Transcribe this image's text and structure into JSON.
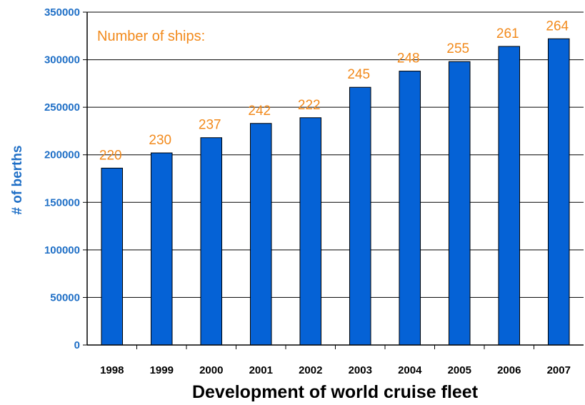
{
  "chart_data": {
    "type": "bar",
    "title": "",
    "xlabel": "Development of world cruise fleet",
    "ylabel": "# of berths",
    "ylim": [
      0,
      350000
    ],
    "yticks": [
      0,
      50000,
      100000,
      150000,
      200000,
      250000,
      300000,
      350000
    ],
    "grid": true,
    "categories": [
      "1998",
      "1999",
      "2000",
      "2001",
      "2002",
      "2003",
      "2004",
      "2005",
      "2006",
      "2007"
    ],
    "series": [
      {
        "values": [
          186000,
          202000,
          218000,
          233000,
          239000,
          271000,
          288000,
          298000,
          314000,
          322000
        ],
        "data_labels": [
          "220",
          "230",
          "237",
          "242",
          "222",
          "245",
          "248",
          "255",
          "261",
          "264"
        ]
      }
    ],
    "annotation": "Number of ships:",
    "colors": {
      "bar": "#0562d6",
      "data_label": "#f28a1c",
      "axis_text": "#1f6fc6"
    }
  }
}
